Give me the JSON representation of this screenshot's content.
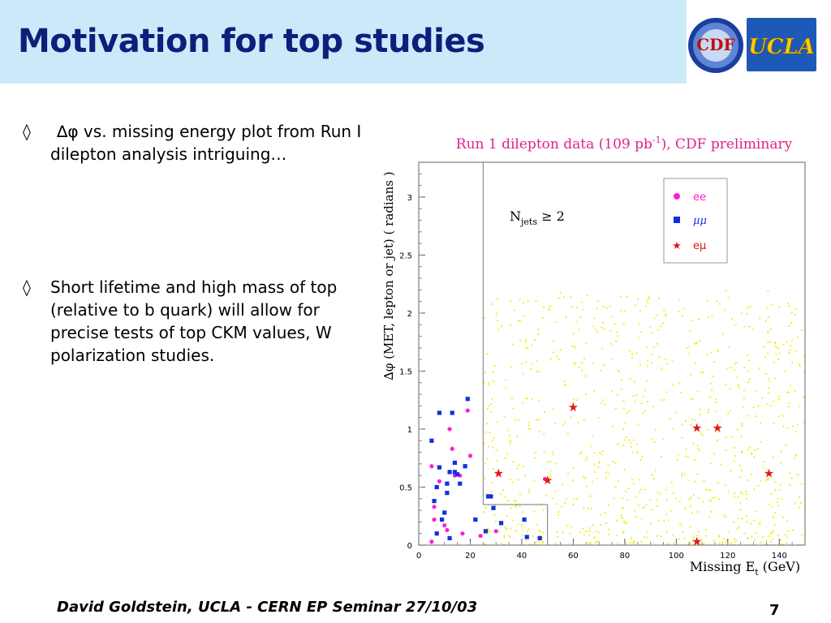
{
  "slide": {
    "title": "Motivation for top studies",
    "logos": {
      "cdf_text": "CDF",
      "ucla_text": "UCLA"
    },
    "bullets": [
      {
        "marker": "◊",
        "symbol": "∆φ",
        "text": " vs. missing energy plot from Run I dilepton analysis intriguing…"
      },
      {
        "marker": "◊",
        "text": "Short lifetime and high mass of top (relative to b quark) will allow for precise tests of top CKM values, W polarization studies."
      }
    ],
    "footer": "David Goldstein, UCLA - CERN EP Seminar 27/10/03",
    "page_number": "7"
  },
  "colors": {
    "header_bg": "#cce9f9",
    "title": "#0d1f7a",
    "plot_title": "#e0218a",
    "ee": "#ff1fd0",
    "mumu": "#1030e0",
    "emu": "#e01818",
    "background_points": "#f2ee20"
  },
  "chart_data": {
    "type": "scatter",
    "title": "Run 1 dilepton data (109 pb-1), CDF preliminary",
    "title_parts": {
      "prefix": "Run 1 dilepton data (109 pb",
      "sup": "-1",
      "suffix": "), CDF preliminary"
    },
    "xlabel": "Missing Et (GeV)",
    "xlabel_parts": {
      "prefix": "Missing E",
      "sub": "t",
      "suffix": " (GeV)"
    },
    "ylabel": "∆φ (MET, lepton or jet) ( radians )",
    "xlim": [
      0,
      150
    ],
    "ylim": [
      0,
      3.3
    ],
    "xticks": [
      "0",
      "20",
      "40",
      "60",
      "80",
      "100",
      "120",
      "140"
    ],
    "yticks": [
      "0",
      "0.5",
      "1",
      "1.5",
      "2",
      "2.5",
      "3"
    ],
    "annotation": {
      "prefix": "N",
      "sub": "jets",
      "suffix": " ≥ 2"
    },
    "cuts": {
      "x_cut": 25,
      "y_cut": 0.35,
      "box_x": [
        25,
        50
      ],
      "box_y": [
        0,
        0.35
      ]
    },
    "legend": {
      "position": "top-right",
      "entries": [
        "ee",
        "μμ",
        "eμ"
      ]
    },
    "series": [
      {
        "name": "ee",
        "marker": "circle",
        "points": [
          [
            5,
            0.68
          ],
          [
            6,
            0.33
          ],
          [
            6,
            0.22
          ],
          [
            8,
            0.55
          ],
          [
            10,
            0.17
          ],
          [
            11,
            0.13
          ],
          [
            12,
            1.0
          ],
          [
            13,
            0.83
          ],
          [
            14,
            0.6
          ],
          [
            16,
            0.6
          ],
          [
            17,
            0.1
          ],
          [
            19,
            1.16
          ],
          [
            20,
            0.77
          ],
          [
            24,
            0.08
          ],
          [
            30,
            0.12
          ],
          [
            49,
            0.57
          ],
          [
            5,
            0.03
          ]
        ]
      },
      {
        "name": "μμ",
        "marker": "square",
        "points": [
          [
            5,
            0.9
          ],
          [
            6,
            0.38
          ],
          [
            7,
            0.5
          ],
          [
            7,
            0.1
          ],
          [
            8,
            1.14
          ],
          [
            8,
            0.67
          ],
          [
            9,
            0.22
          ],
          [
            10,
            0.28
          ],
          [
            11,
            0.45
          ],
          [
            11,
            0.53
          ],
          [
            12,
            0.63
          ],
          [
            12,
            0.06
          ],
          [
            13,
            1.14
          ],
          [
            14,
            0.63
          ],
          [
            14,
            0.71
          ],
          [
            15,
            0.61
          ],
          [
            16,
            0.53
          ],
          [
            18,
            0.68
          ],
          [
            19,
            1.26
          ],
          [
            22,
            0.22
          ],
          [
            26,
            0.12
          ],
          [
            27,
            0.42
          ],
          [
            28,
            0.42
          ],
          [
            29,
            0.32
          ],
          [
            32,
            0.19
          ],
          [
            41,
            0.22
          ],
          [
            42,
            0.07
          ],
          [
            47,
            0.06
          ]
        ]
      },
      {
        "name": "eμ",
        "marker": "star",
        "points": [
          [
            31,
            0.62
          ],
          [
            50,
            0.56
          ],
          [
            60,
            1.19
          ],
          [
            108,
            1.01
          ],
          [
            116,
            1.01
          ],
          [
            136,
            0.62
          ],
          [
            108,
            0.03
          ]
        ]
      }
    ],
    "background": {
      "description": "Monte Carlo expectation shown as dense yellow dots concentrated at low Δφ and Missing Et 25–150 GeV",
      "count": 900
    }
  }
}
